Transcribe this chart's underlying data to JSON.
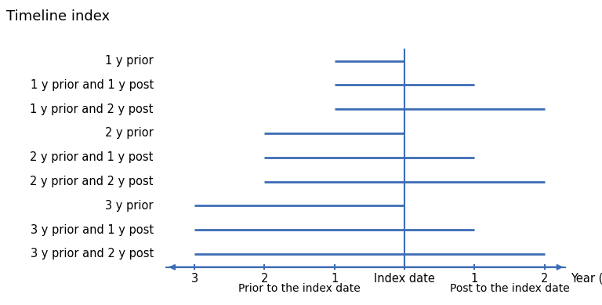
{
  "title": "Timeline index",
  "timeline_labels": [
    "1 y prior",
    "1 y prior and 1 y post",
    "1 y prior and 2 y post",
    "2 y prior",
    "2 y prior and 1 y post",
    "2 y prior and 2 y post",
    "3 y prior",
    "3 y prior and 1 y post",
    "3 y prior and 2 y post"
  ],
  "timeline_ranges": [
    [
      -1,
      0
    ],
    [
      -1,
      1
    ],
    [
      -1,
      2
    ],
    [
      -2,
      0
    ],
    [
      -2,
      1
    ],
    [
      -2,
      2
    ],
    [
      -3,
      0
    ],
    [
      -3,
      1
    ],
    [
      -3,
      2
    ]
  ],
  "line_color": "#3D6CB5",
  "index_line_color": "#3D6CB5",
  "axis_color": "#3D6CB5",
  "x_tick_labels_left": [
    "3",
    "2",
    "1"
  ],
  "x_tick_positions_left": [
    -3,
    -2,
    -1
  ],
  "x_tick_labels_right": [
    "1",
    "2"
  ],
  "x_tick_positions_right": [
    1,
    2
  ],
  "index_label": "Index date",
  "xlabel_prior": "Prior to the index date",
  "xlabel_post": "Post to the index date",
  "year_label": "Year (y)",
  "xlim_left": -3.5,
  "xlim_right": 2.35,
  "background_color": "#ffffff",
  "title_fontsize": 13,
  "label_fontsize": 10.5,
  "tick_fontsize": 10.5,
  "sub_label_fontsize": 10,
  "line_lw": 2.0,
  "axis_lw": 1.5
}
